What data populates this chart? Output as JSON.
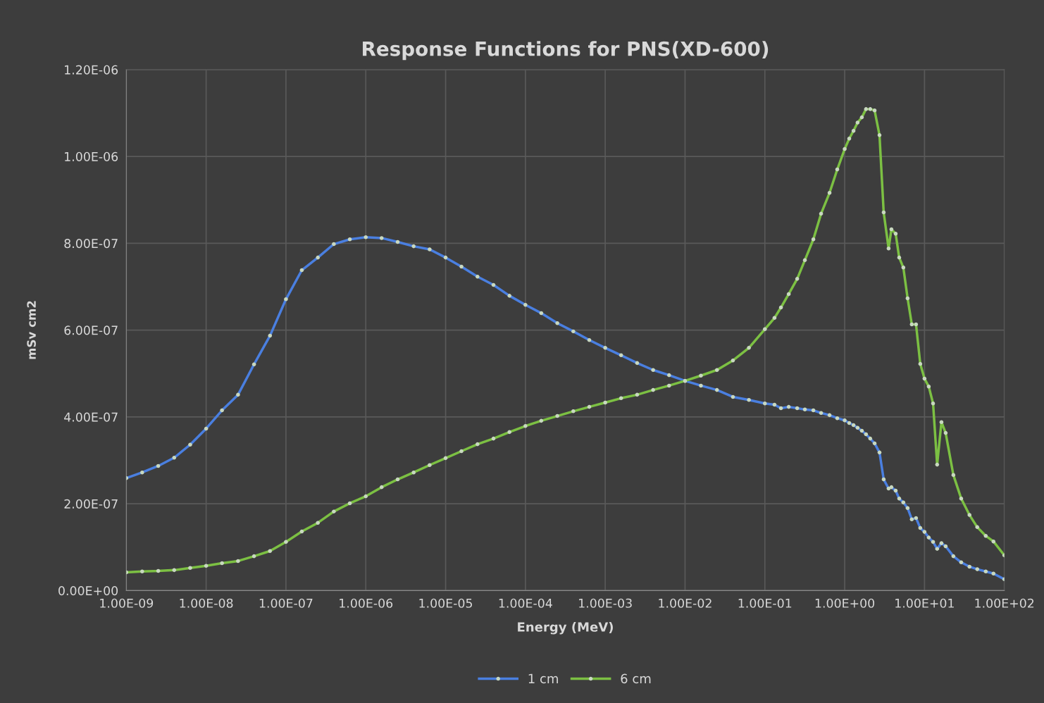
{
  "chart_data": {
    "type": "line",
    "title": "Response Functions for PNS(XD-600)",
    "xlabel": "Energy (MeV)",
    "ylabel": "mSv cm2",
    "log": "x",
    "grid": true,
    "legend": "bottom",
    "marker": "circle",
    "line_style": "solid",
    "xlim": [
      1e-09,
      100
    ],
    "xticks": [
      {
        "value": 1e-09,
        "label": "1.00E-09"
      },
      {
        "value": 1e-08,
        "label": "1.00E-08"
      },
      {
        "value": 1e-07,
        "label": "1.00E-07"
      },
      {
        "value": 1e-06,
        "label": "1.00E-06"
      },
      {
        "value": 1e-05,
        "label": "1.00E-05"
      },
      {
        "value": 0.0001,
        "label": "1.00E-04"
      },
      {
        "value": 0.001,
        "label": "1.00E-03"
      },
      {
        "value": 0.01,
        "label": "1.00E-02"
      },
      {
        "value": 0.1,
        "label": "1.00E-01"
      },
      {
        "value": 1,
        "label": "1.00E+00"
      },
      {
        "value": 10,
        "label": "1.00E+01"
      },
      {
        "value": 100,
        "label": "1.00E+02"
      }
    ],
    "ylim": [
      0,
      1.2e-06
    ],
    "yticks": [
      {
        "value": 0,
        "label": "0.00E+00"
      },
      {
        "value": 2e-07,
        "label": "2.00E-07"
      },
      {
        "value": 4e-07,
        "label": "4.00E-07"
      },
      {
        "value": 6e-07,
        "label": "6.00E-07"
      },
      {
        "value": 8e-07,
        "label": "8.00E-07"
      },
      {
        "value": 1e-06,
        "label": "1.00E-06"
      },
      {
        "value": 1.2e-06,
        "label": "1.20E-06"
      }
    ],
    "x": [
      1e-09,
      1.58e-09,
      2.51e-09,
      3.98e-09,
      6.31e-09,
      1e-08,
      1.58e-08,
      2.51e-08,
      3.98e-08,
      6.31e-08,
      1e-07,
      1.58e-07,
      2.51e-07,
      3.98e-07,
      6.31e-07,
      1e-06,
      1.58e-06,
      2.51e-06,
      3.98e-06,
      6.31e-06,
      1e-05,
      1.58e-05,
      2.51e-05,
      3.98e-05,
      6.31e-05,
      0.0001,
      0.000158,
      0.000251,
      0.000398,
      0.000631,
      0.001,
      0.00158,
      0.00251,
      0.00398,
      0.00631,
      0.01,
      0.0158,
      0.0251,
      0.0398,
      0.0631,
      0.1,
      0.132,
      0.159,
      0.199,
      0.254,
      0.317,
      0.405,
      0.506,
      0.646,
      0.807,
      1.0,
      1.14,
      1.29,
      1.45,
      1.64,
      1.85,
      2.09,
      2.37,
      2.73,
      3.08,
      3.55,
      3.85,
      4.35,
      4.82,
      5.43,
      6.14,
      6.93,
      7.83,
      8.85,
      10,
      11.3,
      12.8,
      14.4,
      16.3,
      18.4,
      23.0,
      28.8,
      36.6,
      45.8,
      58.5,
      73.1,
      100
    ],
    "series": [
      {
        "name": "1 cm",
        "color": "#4a7fe0",
        "values": [
          2.59e-07,
          2.72e-07,
          2.87e-07,
          3.06e-07,
          3.36e-07,
          3.73e-07,
          4.15e-07,
          4.51e-07,
          5.21e-07,
          5.87e-07,
          6.71e-07,
          7.38e-07,
          7.67e-07,
          7.98e-07,
          8.09e-07,
          8.14e-07,
          8.12e-07,
          8.03e-07,
          7.93e-07,
          7.86e-07,
          7.67e-07,
          7.46e-07,
          7.23e-07,
          7.04e-07,
          6.79e-07,
          6.58e-07,
          6.39e-07,
          6.16e-07,
          5.97e-07,
          5.77e-07,
          5.59e-07,
          5.42e-07,
          5.24e-07,
          5.08e-07,
          4.96e-07,
          4.83e-07,
          4.72e-07,
          4.62e-07,
          4.46e-07,
          4.39e-07,
          4.31e-07,
          4.28e-07,
          4.2e-07,
          4.23e-07,
          4.2e-07,
          4.17e-07,
          4.15e-07,
          4.09e-07,
          4.04e-07,
          3.97e-07,
          3.92e-07,
          3.86e-07,
          3.81e-07,
          3.75e-07,
          3.68e-07,
          3.6e-07,
          3.5e-07,
          3.39e-07,
          3.18e-07,
          2.56e-07,
          2.35e-07,
          2.38e-07,
          2.3e-07,
          2.12e-07,
          2.03e-07,
          1.9e-07,
          1.64e-07,
          1.67e-07,
          1.44e-07,
          1.35e-07,
          1.22e-07,
          1.12e-07,
          9.6e-08,
          1.09e-07,
          1.02e-07,
          7.9e-08,
          6.5e-08,
          5.5e-08,
          4.9e-08,
          4.4e-08,
          3.9e-08,
          2.6e-08
        ]
      },
      {
        "name": "6 cm",
        "color": "#7cc043",
        "values": [
          4.2e-08,
          4.4e-08,
          4.5e-08,
          4.7e-08,
          5.2e-08,
          5.7e-08,
          6.3e-08,
          6.8e-08,
          7.9e-08,
          9.1e-08,
          1.12e-07,
          1.36e-07,
          1.56e-07,
          1.82e-07,
          2.01e-07,
          2.17e-07,
          2.38e-07,
          2.56e-07,
          2.72e-07,
          2.89e-07,
          3.05e-07,
          3.21e-07,
          3.37e-07,
          3.5e-07,
          3.65e-07,
          3.79e-07,
          3.91e-07,
          4.02e-07,
          4.13e-07,
          4.23e-07,
          4.33e-07,
          4.43e-07,
          4.51e-07,
          4.62e-07,
          4.72e-07,
          4.83e-07,
          4.95e-07,
          5.08e-07,
          5.3e-07,
          5.59e-07,
          6.02e-07,
          6.28e-07,
          6.52e-07,
          6.83e-07,
          7.18e-07,
          7.61e-07,
          8.09e-07,
          8.68e-07,
          9.16e-07,
          9.7e-07,
          1.017e-06,
          1.041e-06,
          1.059e-06,
          1.078e-06,
          1.09e-06,
          1.109e-06,
          1.109e-06,
          1.106e-06,
          1.049e-06,
          8.71e-07,
          7.88e-07,
          8.32e-07,
          8.22e-07,
          7.67e-07,
          7.44e-07,
          6.73e-07,
          6.13e-07,
          6.13e-07,
          5.22e-07,
          4.88e-07,
          4.7e-07,
          4.31e-07,
          2.9e-07,
          3.88e-07,
          3.63e-07,
          2.66e-07,
          2.12e-07,
          1.74e-07,
          1.46e-07,
          1.26e-07,
          1.13e-07,
          8.1e-08
        ]
      }
    ]
  }
}
